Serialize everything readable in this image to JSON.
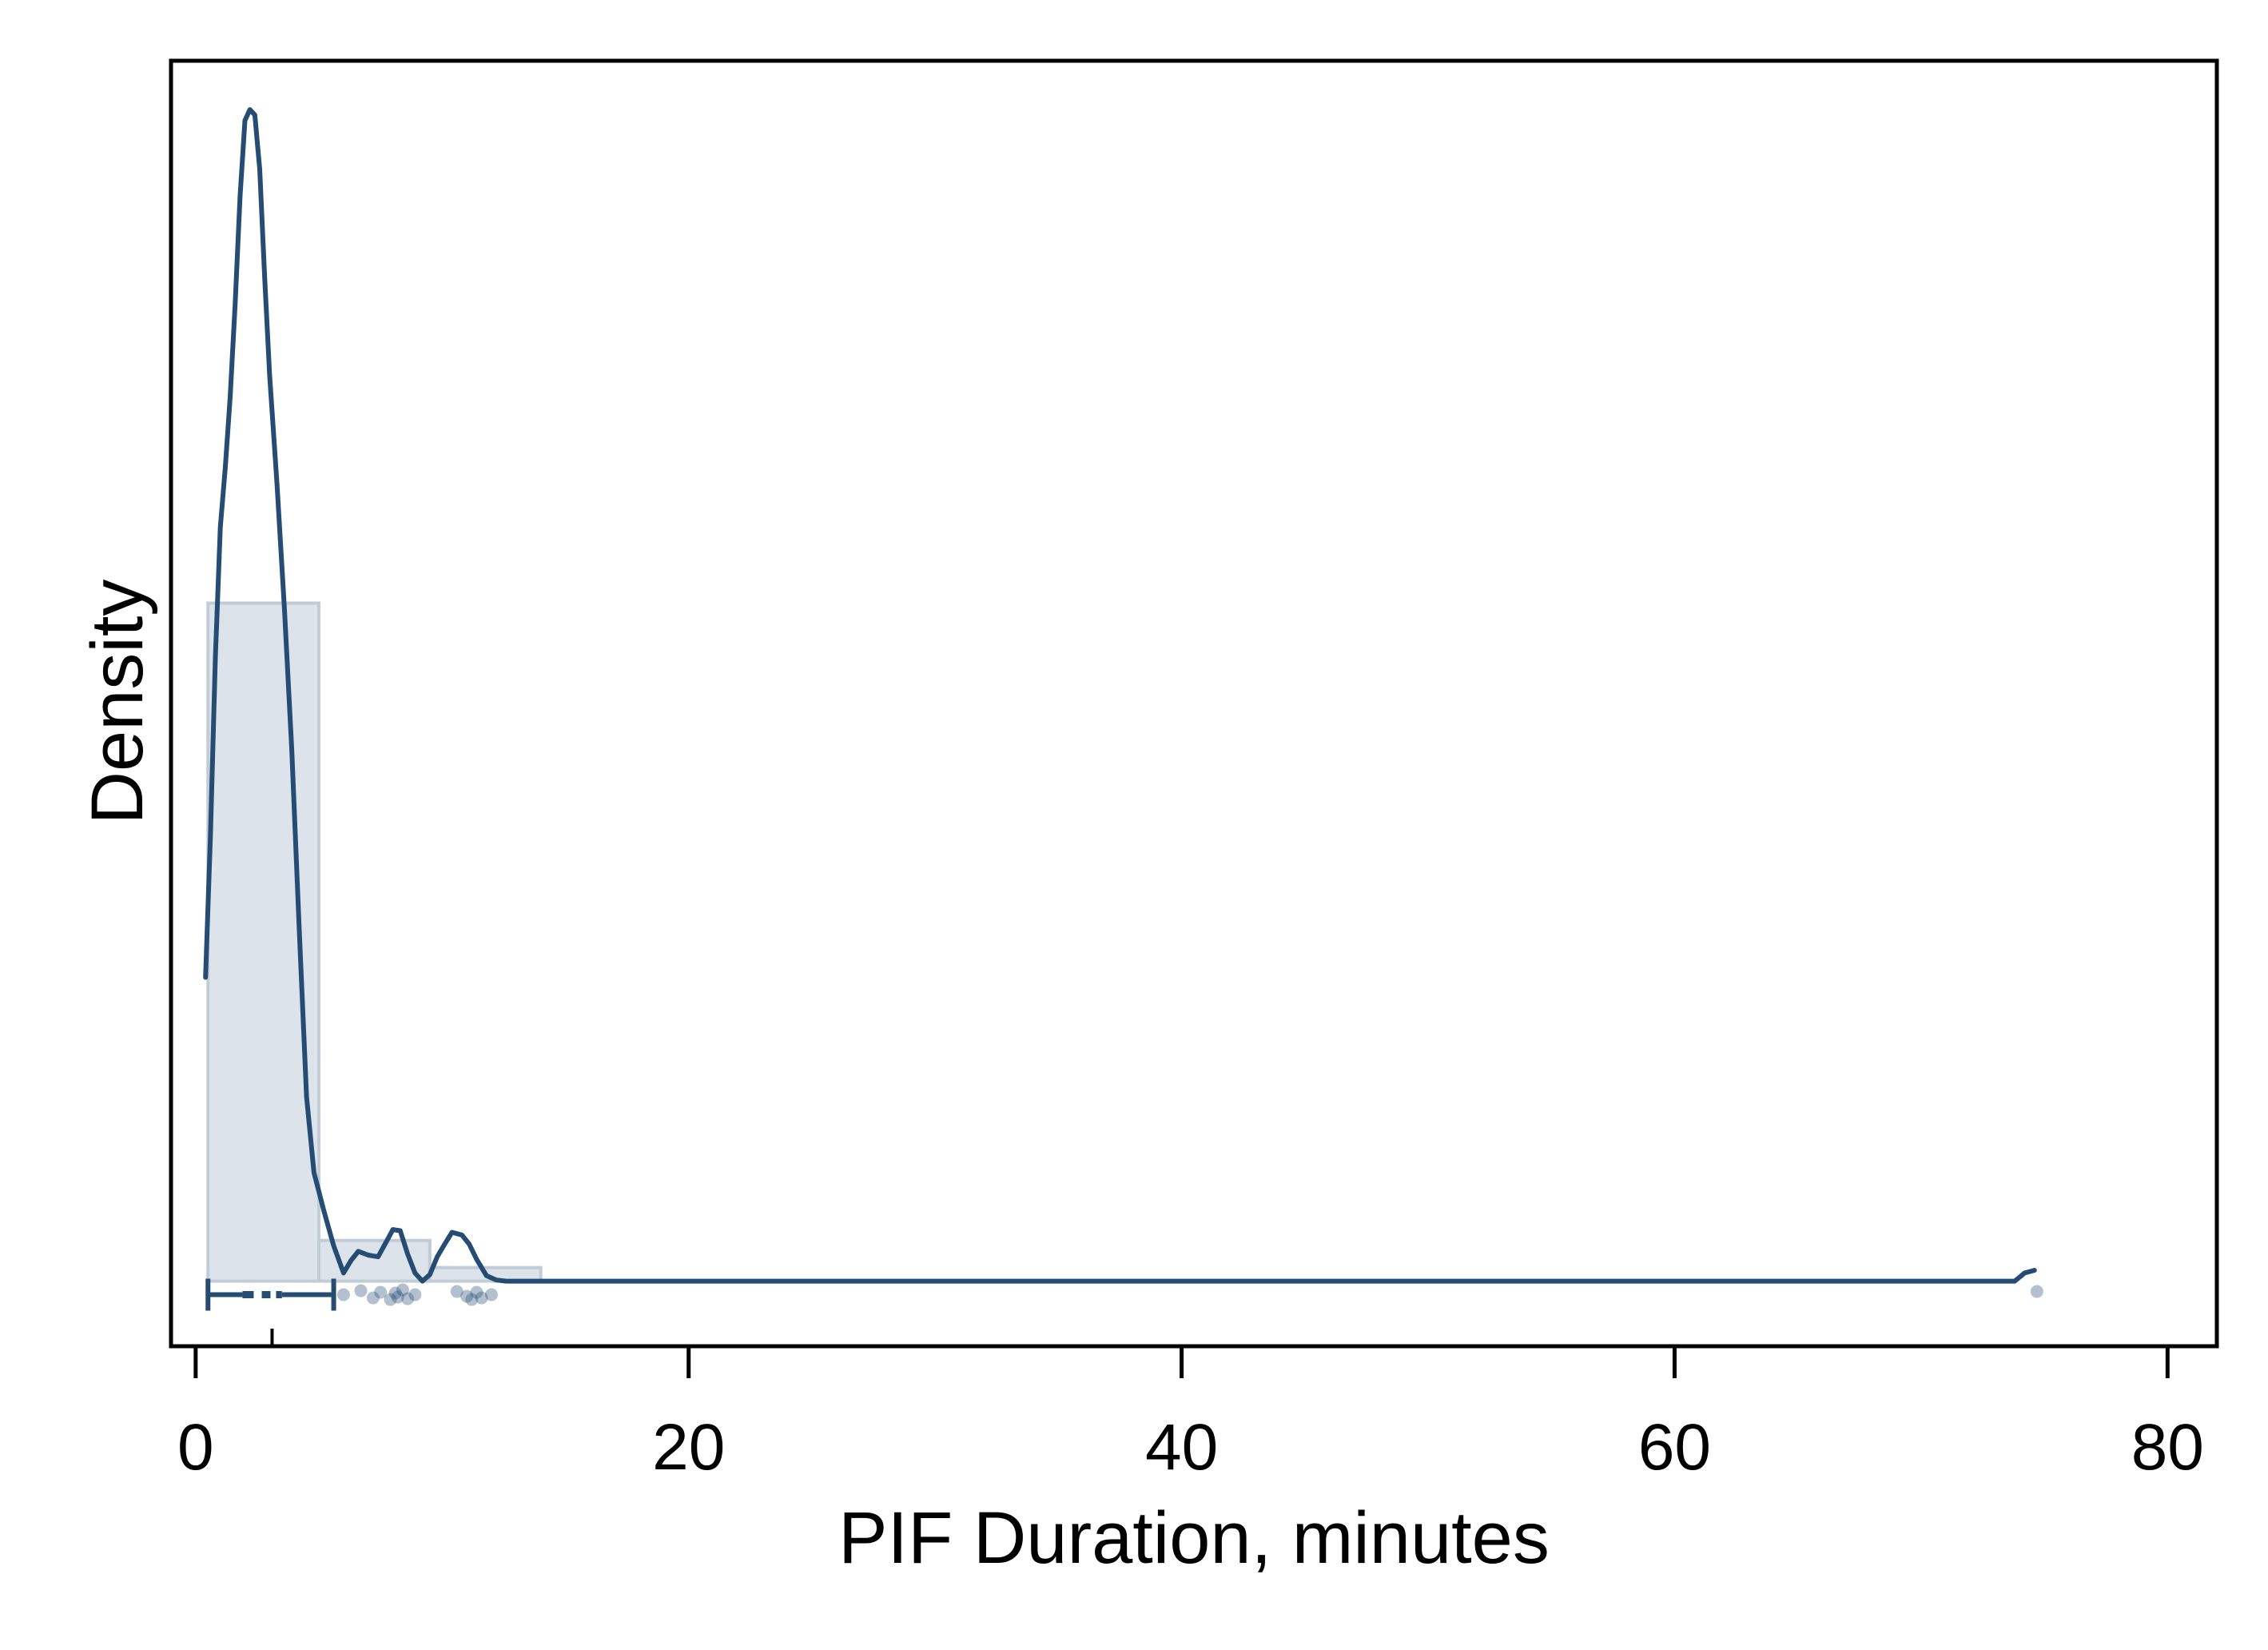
{
  "chart_data": {
    "type": "histogram",
    "xlabel": "PIF Duration, minutes",
    "ylabel": "Density",
    "xlim": [
      -1,
      82
    ],
    "ylim": [
      -0.012,
      0.225
    ],
    "x_ticks": [
      0,
      20,
      40,
      60,
      80
    ],
    "x_tick_labels": [
      "0",
      "20",
      "40",
      "60",
      "80"
    ],
    "y_ticks_shown": false,
    "grid": false,
    "legend": "none",
    "colors": {
      "line": "#264c73",
      "bar_fill": "#dde3ea",
      "bar_edge": "#c2ccd6",
      "points": "#264c73",
      "frame": "#000000"
    },
    "histogram_bins": [
      {
        "start": 0.5,
        "end": 5.0,
        "density": 0.125
      },
      {
        "start": 5.0,
        "end": 9.5,
        "density": 0.0075
      },
      {
        "start": 9.5,
        "end": 14.0,
        "density": 0.0025
      }
    ],
    "density_curve": {
      "x": [
        0.4,
        0.6,
        0.8,
        1.0,
        1.2,
        1.4,
        1.6,
        1.8,
        2.0,
        2.2,
        2.4,
        2.6,
        2.8,
        3.0,
        3.3,
        3.6,
        3.9,
        4.2,
        4.5,
        4.8,
        5.2,
        5.6,
        6.0,
        6.3,
        6.6,
        7.0,
        7.4,
        7.8,
        8.0,
        8.3,
        8.6,
        8.9,
        9.2,
        9.5,
        9.8,
        10.1,
        10.4,
        10.8,
        11.1,
        11.4,
        11.8,
        12.2,
        12.6,
        13.0,
        15,
        20,
        30,
        40,
        50,
        60,
        70,
        73.8,
        74.2,
        74.6
      ],
      "y": [
        0.056,
        0.082,
        0.115,
        0.139,
        0.15,
        0.163,
        0.18,
        0.2,
        0.214,
        0.216,
        0.215,
        0.205,
        0.185,
        0.167,
        0.147,
        0.124,
        0.098,
        0.065,
        0.034,
        0.02,
        0.013,
        0.0065,
        0.0015,
        0.0038,
        0.0055,
        0.0048,
        0.0045,
        0.0078,
        0.0095,
        0.0093,
        0.005,
        0.0015,
        0.0,
        0.0012,
        0.0045,
        0.0068,
        0.009,
        0.0085,
        0.0068,
        0.004,
        0.001,
        0.0002,
        0.0,
        0.0,
        0.0,
        0.0,
        0.0,
        0.0,
        0.0,
        0.0,
        0.0,
        0.0,
        0.0015,
        0.002
      ]
    },
    "boxplot": {
      "whisker_low": 0.5,
      "q1": 1.9,
      "median": 2.6,
      "q3": 3.5,
      "whisker_high": 5.6,
      "y": -0.0025
    },
    "outliers": [
      6.0,
      6.7,
      7.2,
      7.5,
      7.9,
      8.1,
      8.2,
      8.4,
      8.6,
      8.9,
      10.6,
      11.0,
      11.2,
      11.4,
      11.6,
      12.0,
      74.7
    ],
    "rug_marker_x": 3.1
  }
}
